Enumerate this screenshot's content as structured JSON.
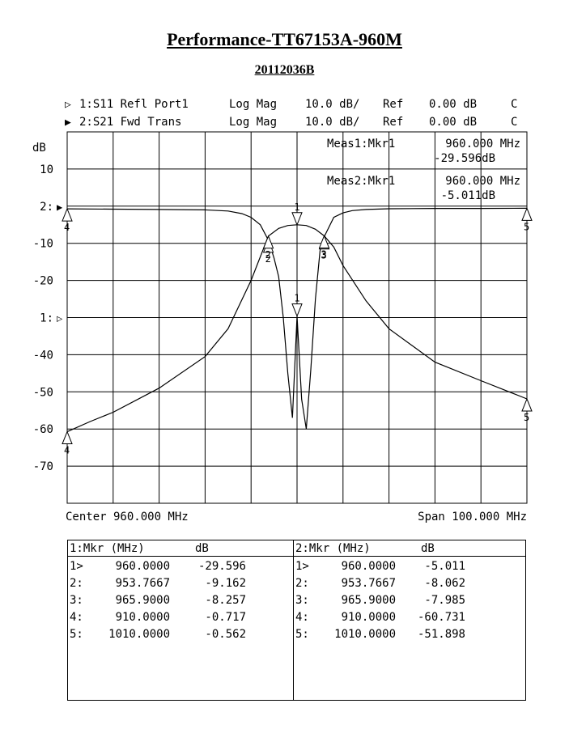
{
  "title": "Performance-TT67153A-960M",
  "subtitle": "20112036B",
  "traces": [
    {
      "id": "1",
      "marker_glyph": "▷",
      "param": "S11",
      "desc": "Refl Port1",
      "format": "Log Mag",
      "scale": "10.0 dB/",
      "ref_label": "Ref",
      "ref_value": "0.00 dB",
      "flag": "C"
    },
    {
      "id": "2",
      "marker_glyph": "▶",
      "param": "S21",
      "desc": "Fwd Trans",
      "format": "Log Mag",
      "scale": "10.0 dB/",
      "ref_label": "Ref",
      "ref_value": "0.00 dB",
      "flag": "C"
    }
  ],
  "meas": [
    {
      "label": "Meas1:Mkr1",
      "freq": "960.000 MHz",
      "value": "-29.596dB"
    },
    {
      "label": "Meas2:Mkr1",
      "freq": "960.000 MHz",
      "value": "-5.011dB"
    }
  ],
  "footer": {
    "center": "Center 960.000 MHz",
    "span": "Span 100.000 MHz"
  },
  "chart_data": {
    "type": "line",
    "ylabel": "dB",
    "xlim": [
      910,
      1010
    ],
    "ylim": [
      -80,
      20
    ],
    "grid": true,
    "x_divisions": 10,
    "y_ticks": [
      {
        "value": 10,
        "label": "10"
      },
      {
        "value": 0,
        "label": "2:",
        "ref_marker": "▶"
      },
      {
        "value": -10,
        "label": "-10"
      },
      {
        "value": -20,
        "label": "-20"
      },
      {
        "value": -30,
        "label": "1:",
        "ref_marker": "▷"
      },
      {
        "value": -40,
        "label": "-40"
      },
      {
        "value": -50,
        "label": "-50"
      },
      {
        "value": -60,
        "label": "-60"
      },
      {
        "value": -70,
        "label": "-70"
      }
    ],
    "series": [
      {
        "name": "S11",
        "x": [
          910,
          920,
          930,
          940,
          945,
          948,
          950,
          952,
          953.77,
          955,
          956,
          957,
          958,
          959,
          960,
          961,
          962,
          963,
          964,
          965,
          965.9,
          968,
          970,
          972,
          975,
          980,
          990,
          1000,
          1010
        ],
        "y": [
          -0.717,
          -0.8,
          -0.9,
          -1.0,
          -1.3,
          -2.0,
          -3.0,
          -5.0,
          -9.162,
          -14.0,
          -19.0,
          -30.0,
          -45.0,
          -57.0,
          -29.596,
          -52.0,
          -60.0,
          -44.0,
          -25.0,
          -12.0,
          -8.257,
          -3.0,
          -1.8,
          -1.2,
          -0.9,
          -0.7,
          -0.6,
          -0.6,
          -0.562
        ]
      },
      {
        "name": "S21",
        "x": [
          910,
          915,
          920,
          930,
          940,
          945,
          950,
          953.77,
          956,
          958,
          960,
          962,
          964,
          965.9,
          968,
          970,
          975,
          980,
          990,
          1000,
          1010
        ],
        "y": [
          -60.731,
          -58.0,
          -55.5,
          -49.0,
          -40.5,
          -33.0,
          -20.0,
          -8.062,
          -6.0,
          -5.2,
          -5.011,
          -5.2,
          -6.2,
          -7.985,
          -11.0,
          -16.0,
          -25.5,
          -33.0,
          -42.0,
          -47.0,
          -51.898
        ]
      }
    ],
    "markers": {
      "S11": [
        {
          "id": "1",
          "x": 960.0,
          "y": -29.596,
          "label_pos": "above"
        },
        {
          "id": "2",
          "x": 953.7667,
          "y": -9.162,
          "label_pos": "below"
        },
        {
          "id": "3",
          "x": 965.9,
          "y": -8.257,
          "label_pos": "below"
        },
        {
          "id": "4",
          "x": 910.0,
          "y": -0.717,
          "label_pos": "below"
        },
        {
          "id": "5",
          "x": 1010.0,
          "y": -0.562,
          "label_pos": "below"
        }
      ],
      "S21": [
        {
          "id": "1",
          "x": 960.0,
          "y": -5.011,
          "label_pos": "above"
        },
        {
          "id": "2",
          "x": 953.7667,
          "y": -8.062,
          "label_pos": "below"
        },
        {
          "id": "3",
          "x": 965.9,
          "y": -7.985,
          "label_pos": "below"
        },
        {
          "id": "4",
          "x": 910.0,
          "y": -60.731,
          "label_pos": "below"
        },
        {
          "id": "5",
          "x": 1010.0,
          "y": -51.898,
          "label_pos": "below"
        }
      ]
    },
    "marker_tables": [
      {
        "header": "1:Mkr (MHz)",
        "unit": "dB",
        "rows": [
          {
            "id": "1>",
            "freq": "960.0000",
            "value": "-29.596"
          },
          {
            "id": "2:",
            "freq": "953.7667",
            "value": "-9.162"
          },
          {
            "id": "3:",
            "freq": "965.9000",
            "value": "-8.257"
          },
          {
            "id": "4:",
            "freq": "910.0000",
            "value": "-0.717"
          },
          {
            "id": "5:",
            "freq": "1010.0000",
            "value": "-0.562"
          }
        ]
      },
      {
        "header": "2:Mkr (MHz)",
        "unit": "dB",
        "rows": [
          {
            "id": "1>",
            "freq": "960.0000",
            "value": "-5.011"
          },
          {
            "id": "2:",
            "freq": "953.7667",
            "value": "-8.062"
          },
          {
            "id": "3:",
            "freq": "965.9000",
            "value": "-7.985"
          },
          {
            "id": "4:",
            "freq": "910.0000",
            "value": "-60.731"
          },
          {
            "id": "5:",
            "freq": "1010.0000",
            "value": "-51.898"
          }
        ]
      }
    ]
  }
}
